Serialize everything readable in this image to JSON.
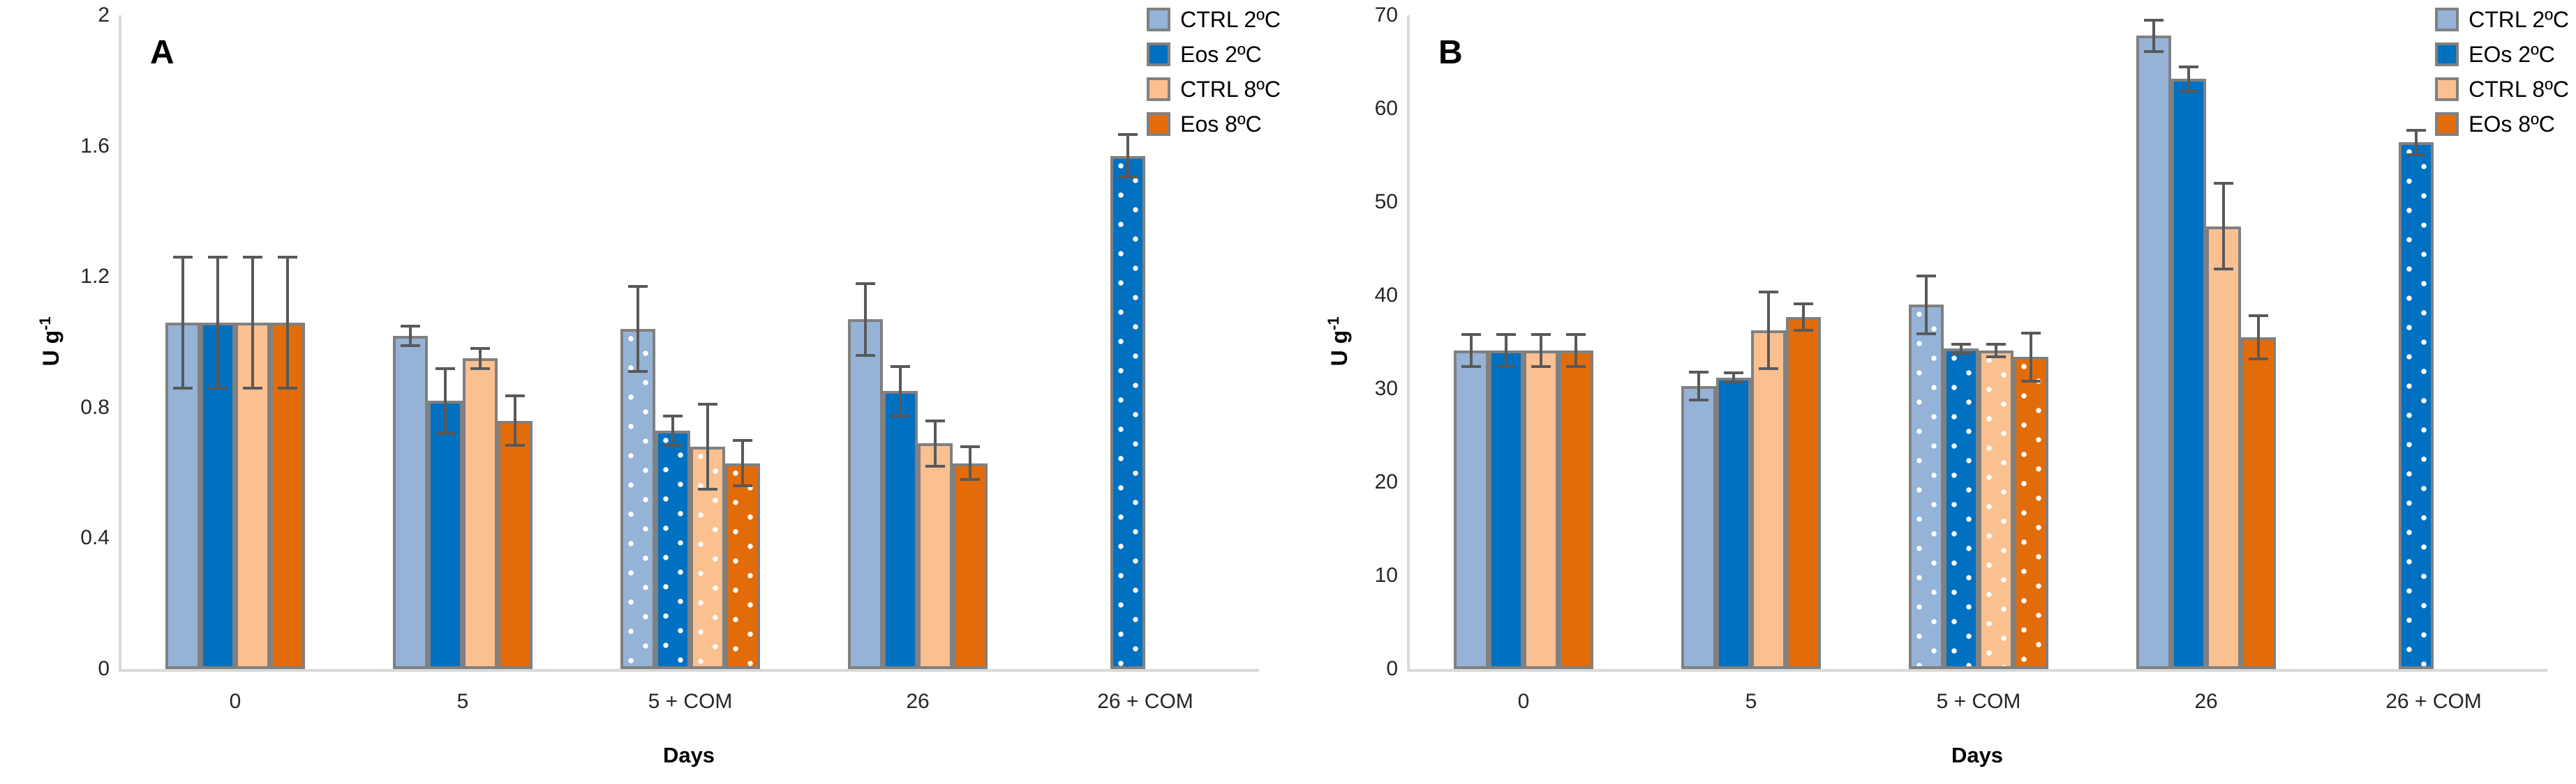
{
  "styles": {
    "bar_border_color": "#808080",
    "error_bar_color": "#595959",
    "axis_line_color": "#D9D9D9",
    "text_color": "#262626",
    "background_color": "#FFFFFF"
  },
  "chart_data": [
    {
      "type": "bar",
      "panel_label": "A",
      "xlabel": "Days",
      "ylabel_base": "U g",
      "ylabel_exp": "-1",
      "ylim": [
        0,
        2
      ],
      "yticks": [
        0,
        0.4,
        0.8,
        1.2,
        1.6,
        2
      ],
      "ytick_labels": [
        "0",
        "0.4",
        "0.8",
        "1.2",
        "1.6",
        "2"
      ],
      "categories": [
        "0",
        "5",
        "5 + COM",
        "26",
        "26 + COM"
      ],
      "dotted_category_indexes": [
        2,
        4
      ],
      "grid": false,
      "legend_position": "top-right",
      "series": [
        {
          "name": "CTRL 2ºC",
          "color": "#95B3D7",
          "values": [
            1.06,
            1.02,
            1.04,
            1.07,
            null
          ],
          "errors": [
            0.2,
            0.03,
            0.13,
            0.11,
            null
          ]
        },
        {
          "name": "Eos 2ºC",
          "color": "#0070C0",
          "values": [
            1.06,
            0.82,
            0.73,
            0.85,
            1.57
          ],
          "errors": [
            0.2,
            0.1,
            0.045,
            0.075,
            0.065
          ]
        },
        {
          "name": "CTRL 8ºC",
          "color": "#FAC090",
          "values": [
            1.06,
            0.95,
            0.68,
            0.69,
            null
          ],
          "errors": [
            0.2,
            0.03,
            0.13,
            0.07,
            null
          ]
        },
        {
          "name": "Eos 8ºC",
          "color": "#E36C0A",
          "values": [
            1.06,
            0.76,
            0.63,
            0.63,
            null
          ],
          "errors": [
            0.2,
            0.075,
            0.07,
            0.05,
            null
          ]
        }
      ]
    },
    {
      "type": "bar",
      "panel_label": "B",
      "xlabel": "Days",
      "ylabel_base": "U g",
      "ylabel_exp": "-1",
      "ylim": [
        0,
        70
      ],
      "yticks": [
        0,
        10,
        20,
        30,
        40,
        50,
        60,
        70
      ],
      "ytick_labels": [
        "0",
        "10",
        "20",
        "30",
        "40",
        "50",
        "60",
        "70"
      ],
      "categories": [
        "0",
        "5",
        "5 + COM",
        "26",
        "26 + COM"
      ],
      "dotted_category_indexes": [
        2,
        4
      ],
      "grid": false,
      "legend_position": "top-right",
      "series": [
        {
          "name": "CTRL 2ºC",
          "color": "#95B3D7",
          "values": [
            34.1,
            30.3,
            39.0,
            67.8,
            null
          ],
          "errors": [
            1.7,
            1.5,
            3.1,
            1.7,
            null
          ]
        },
        {
          "name": "EOs 2ºC",
          "color": "#0070C0",
          "values": [
            34.1,
            31.2,
            34.3,
            63.2,
            56.4
          ],
          "errors": [
            1.7,
            0.5,
            0.5,
            1.3,
            1.3
          ]
        },
        {
          "name": "CTRL 8ºC",
          "color": "#FAC090",
          "values": [
            34.1,
            36.3,
            34.1,
            47.4,
            null
          ],
          "errors": [
            1.7,
            4.1,
            0.7,
            4.6,
            null
          ]
        },
        {
          "name": "EOs 8ºC",
          "color": "#E36C0A",
          "values": [
            34.1,
            37.7,
            33.4,
            35.5,
            null
          ],
          "errors": [
            1.7,
            1.4,
            2.6,
            2.3,
            null
          ]
        }
      ]
    }
  ]
}
